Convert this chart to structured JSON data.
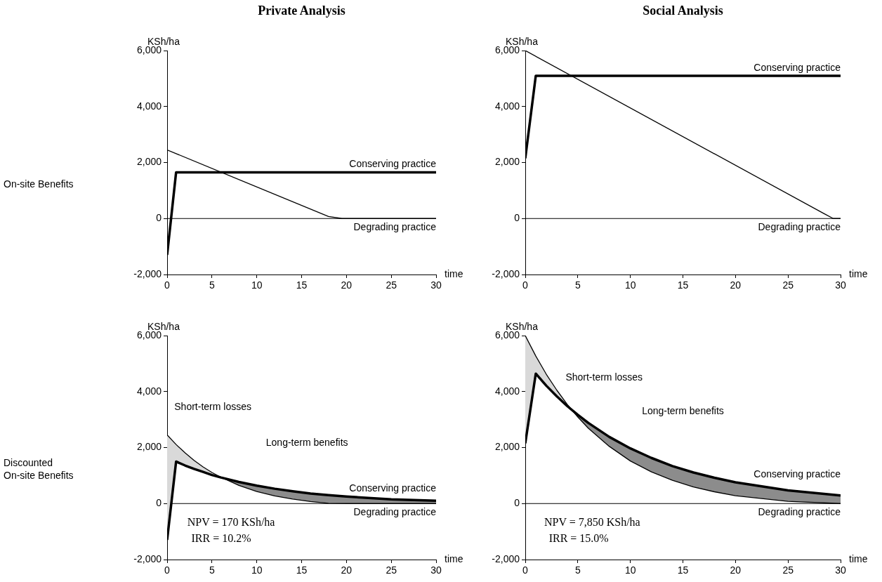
{
  "chart_data": [
    {
      "type": "line",
      "title": "Private Analysis",
      "ylabel": "KSh/ha",
      "xlabel": "time",
      "xlim": [
        0,
        30
      ],
      "xticks": [
        0,
        5,
        10,
        15,
        20,
        25,
        30
      ],
      "ylim": [
        -2000,
        6000
      ],
      "yticks": [
        {
          "value": -2000,
          "label": "-2,000"
        },
        {
          "value": 0,
          "label": "0"
        },
        {
          "value": 2000,
          "label": "2,000"
        },
        {
          "value": 4000,
          "label": "4,000"
        },
        {
          "value": 6000,
          "label": "6,000"
        }
      ],
      "series": [
        {
          "name": "Conserving practice",
          "color": "#000000",
          "x": [
            0,
            1,
            30
          ],
          "values": [
            -1300,
            1650,
            1650
          ]
        },
        {
          "name": "Degrading practice",
          "color": "#000000",
          "x": [
            0,
            18,
            19.5,
            30
          ],
          "values": [
            2450,
            70,
            0,
            0
          ]
        }
      ],
      "ref_lines": [
        {
          "axis": "y",
          "value": 0
        }
      ],
      "annotations": [
        "On-site Benefits"
      ]
    },
    {
      "type": "line",
      "title": "Social Analysis",
      "ylabel": "KSh/ha",
      "xlabel": "time",
      "xlim": [
        0,
        30
      ],
      "xticks": [
        0,
        5,
        10,
        15,
        20,
        25,
        30
      ],
      "ylim": [
        -2000,
        6000
      ],
      "yticks": [
        {
          "value": -2000,
          "label": "-2,000"
        },
        {
          "value": 0,
          "label": "0"
        },
        {
          "value": 2000,
          "label": "2,000"
        },
        {
          "value": 4000,
          "label": "4,000"
        },
        {
          "value": 6000,
          "label": "6,000"
        }
      ],
      "series": [
        {
          "name": "Conserving practice",
          "color": "#000000",
          "x": [
            0,
            1,
            30
          ],
          "values": [
            2150,
            5100,
            5100
          ]
        },
        {
          "name": "Degrading practice",
          "color": "#000000",
          "x": [
            0,
            28.5,
            29.3,
            30
          ],
          "values": [
            6000,
            160,
            0,
            0
          ]
        }
      ],
      "ref_lines": [
        {
          "axis": "y",
          "value": 0
        }
      ]
    },
    {
      "type": "line",
      "ylabel": "KSh/ha",
      "xlabel": "time",
      "xlim": [
        0,
        30
      ],
      "xticks": [
        0,
        5,
        10,
        15,
        20,
        25,
        30
      ],
      "ylim": [
        -2000,
        6000
      ],
      "yticks": [
        {
          "value": -2000,
          "label": "-2,000"
        },
        {
          "value": 0,
          "label": "0"
        },
        {
          "value": 2000,
          "label": "2,000"
        },
        {
          "value": 4000,
          "label": "4,000"
        },
        {
          "value": 6000,
          "label": "6,000"
        }
      ],
      "series": [
        {
          "name": "Conserving practice",
          "color": "#000000",
          "x": [
            0,
            1,
            2,
            3,
            4,
            5,
            6,
            8,
            10,
            12,
            14,
            16,
            18,
            20,
            25,
            30
          ],
          "values": [
            -1300,
            1500,
            1360,
            1240,
            1130,
            1020,
            930,
            770,
            640,
            530,
            440,
            360,
            300,
            250,
            150,
            100
          ],
          "lower": [
            -1300,
            1500,
            1360,
            1240,
            1130,
            1020,
            930,
            null,
            null,
            null,
            null,
            null,
            null,
            null,
            null,
            null
          ],
          "upper": [
            2450,
            2110,
            1810,
            1540,
            1310,
            1110,
            940,
            null,
            null,
            null,
            null,
            null,
            null,
            null,
            null,
            null
          ]
        },
        {
          "name": "Degrading practice",
          "color": "#000000",
          "x": [
            0,
            1,
            2,
            3,
            4,
            5,
            6,
            8,
            10,
            12,
            14,
            16,
            18,
            20,
            25,
            30
          ],
          "values": [
            2450,
            2110,
            1810,
            1540,
            1310,
            1110,
            940,
            650,
            430,
            270,
            160,
            70,
            10,
            0,
            0,
            0
          ],
          "lower": [
            null,
            null,
            null,
            null,
            null,
            null,
            930,
            650,
            430,
            270,
            160,
            70,
            10,
            0,
            0,
            0
          ],
          "upper": [
            null,
            null,
            null,
            null,
            null,
            null,
            940,
            770,
            640,
            530,
            440,
            360,
            300,
            250,
            150,
            100
          ]
        }
      ],
      "ref_lines": [
        {
          "axis": "y",
          "value": 0
        }
      ],
      "annotations": [
        "Discounted On-site Benefits",
        "Short-term losses",
        "Long-term benefits",
        "NPV = 170 KSh/ha",
        "IRR = 10.2%"
      ]
    },
    {
      "type": "line",
      "ylabel": "KSh/ha",
      "xlabel": "time",
      "xlim": [
        0,
        30
      ],
      "xticks": [
        0,
        5,
        10,
        15,
        20,
        25,
        30
      ],
      "ylim": [
        -2000,
        6000
      ],
      "yticks": [
        {
          "value": -2000,
          "label": "-2,000"
        },
        {
          "value": 0,
          "label": "0"
        },
        {
          "value": 2000,
          "label": "2,000"
        },
        {
          "value": 4000,
          "label": "4,000"
        },
        {
          "value": 6000,
          "label": "6,000"
        }
      ],
      "series": [
        {
          "name": "Conserving practice",
          "color": "#000000",
          "x": [
            0,
            1,
            2,
            3,
            4,
            5,
            6,
            8,
            10,
            12,
            14,
            16,
            18,
            20,
            25,
            30
          ],
          "values": [
            2150,
            4640,
            4210,
            3830,
            3480,
            3170,
            2880,
            2380,
            1970,
            1630,
            1340,
            1110,
            920,
            760,
            470,
            290
          ],
          "lower": [
            2150,
            4640,
            4210,
            3830,
            3480,
            null,
            null,
            null,
            null,
            null,
            null,
            null,
            null,
            null,
            null,
            null
          ],
          "upper": [
            6000,
            5270,
            4620,
            4050,
            3540,
            null,
            null,
            null,
            null,
            null,
            null,
            null,
            null,
            null,
            null,
            null
          ]
        },
        {
          "name": "Degrading practice",
          "color": "#000000",
          "x": [
            0,
            1,
            2,
            3,
            4,
            5,
            6,
            8,
            10,
            12,
            14,
            16,
            18,
            20,
            25,
            30
          ],
          "values": [
            6000,
            5270,
            4620,
            4050,
            3540,
            3090,
            2690,
            2040,
            1520,
            1130,
            830,
            590,
            420,
            280,
            80,
            0
          ],
          "lower": [
            null,
            null,
            null,
            null,
            3480,
            3090,
            2690,
            2040,
            1520,
            1130,
            830,
            590,
            420,
            280,
            80,
            0
          ],
          "upper": [
            null,
            null,
            null,
            null,
            3540,
            3170,
            2880,
            2380,
            1970,
            1630,
            1340,
            1110,
            920,
            760,
            470,
            290
          ]
        }
      ],
      "ref_lines": [
        {
          "axis": "y",
          "value": 0
        }
      ],
      "annotations": [
        "Short-term losses",
        "Long-term benefits",
        "NPV = 7,850 KSh/ha",
        "IRR = 15.0%"
      ]
    }
  ]
}
